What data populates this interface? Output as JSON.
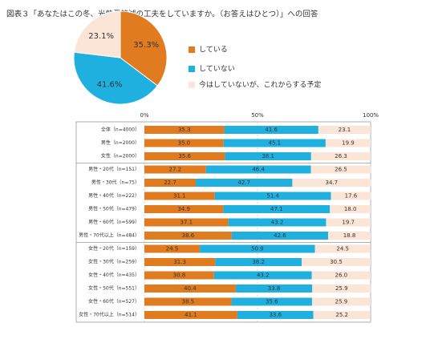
{
  "chart_data": [
    {
      "type": "pie",
      "title": "図表３「あなたはこの冬、光熱費節減の工夫をしていますか。（お答えはひとつ）」への回答",
      "categories": [
        "している",
        "していない",
        "今はしていないが、これからする予定"
      ],
      "values": [
        35.3,
        41.6,
        23.1
      ],
      "value_labels": [
        "35.3%",
        "41.6%",
        "23.1%"
      ],
      "colors": [
        "#e07b1f",
        "#1fb0e0",
        "#fbe5d6"
      ]
    },
    {
      "type": "stacked-bar",
      "categories": [
        "全体（n=4000）",
        "男性（n=2000）",
        "女性（n=2000）",
        "男性・20代（n=151）",
        "男性・30代（n=75）",
        "男性・40代（n=222）",
        "男性・50代（n=479）",
        "男性・60代（n=599）",
        "男性・70代以上（n=484）",
        "女性・20代（n=159）",
        "女性・30代（n=259）",
        "女性・40代（n=435）",
        "女性・50代（n=551）",
        "女性・60代（n=527）",
        "女性・70代以上（n=514）"
      ],
      "series": [
        {
          "color": "#e07b1f",
          "values": [
            35.3,
            35.0,
            35.6,
            27.2,
            22.7,
            31.1,
            34.9,
            37.1,
            38.6,
            24.5,
            31.3,
            30.8,
            40.4,
            38.5,
            41.1
          ],
          "value_labels": [
            "35.3",
            "35.0",
            "35.6",
            "27.2",
            "22.7",
            "31.1",
            "34.9",
            "37.1",
            "38.6",
            "24.5",
            "31.3",
            "30.8",
            "40.4",
            "38.5",
            "41.1"
          ]
        },
        {
          "color": "#1fb0e0",
          "values": [
            41.6,
            45.1,
            38.1,
            46.4,
            42.7,
            51.4,
            47.1,
            43.2,
            42.6,
            50.9,
            38.2,
            43.2,
            33.8,
            35.6,
            33.6
          ],
          "value_labels": [
            "41.6",
            "45.1",
            "38.1",
            "46.4",
            "42.7",
            "51.4",
            "47.1",
            "43.2",
            "42.6",
            "50.9",
            "38.2",
            "43.2",
            "33.8",
            "35.6",
            "33.6"
          ]
        },
        {
          "color": "#fbe5d6",
          "values": [
            23.1,
            19.9,
            26.3,
            26.5,
            34.7,
            17.6,
            18.0,
            19.7,
            18.8,
            24.5,
            30.5,
            26.0,
            25.9,
            25.9,
            25.2
          ],
          "value_labels": [
            "23.1",
            "19.9",
            "26.3",
            "26.5",
            "34.7",
            "17.6",
            "18.0",
            "19.7",
            "18.8",
            "24.5",
            "30.5",
            "26.0",
            "25.9",
            "25.9",
            "25.2"
          ]
        }
      ],
      "xlim": [
        0,
        100
      ],
      "xticks": [
        {
          "value": 0,
          "label": "0%"
        },
        {
          "value": 50,
          "label": "50%"
        },
        {
          "value": 100,
          "label": "100%"
        }
      ],
      "grid": true
    }
  ]
}
